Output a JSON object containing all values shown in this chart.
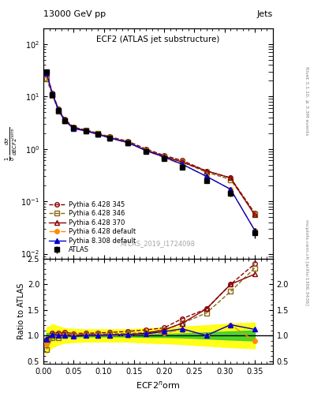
{
  "title_top": "13000 GeV pp",
  "title_right": "Jets",
  "plot_title": "ECF2 (ATLAS jet substructure)",
  "xlabel": "ECF2$^n$orm",
  "ylabel_main": "$\\frac{1}{\\sigma} \\frac{d\\sigma}{dECF2^norm}$",
  "ylabel_ratio": "Ratio to ATLAS",
  "watermark": "ATLAS_2019_I1724098",
  "right_label": "Rivet 3.1.10, ≥ 3.3M events",
  "arxiv_label": "mcplots.cern.ch [arXiv:1306.3436]",
  "x_atlas": [
    0.005,
    0.015,
    0.025,
    0.035,
    0.05,
    0.07,
    0.09,
    0.11,
    0.14,
    0.17,
    0.2,
    0.23,
    0.27,
    0.31,
    0.35
  ],
  "y_atlas": [
    30,
    11,
    5.5,
    3.5,
    2.5,
    2.2,
    1.9,
    1.6,
    1.3,
    0.9,
    0.65,
    0.45,
    0.25,
    0.14,
    0.025
  ],
  "y_atlas_err": [
    2,
    0.5,
    0.3,
    0.2,
    0.15,
    0.1,
    0.1,
    0.08,
    0.06,
    0.05,
    0.04,
    0.03,
    0.02,
    0.015,
    0.005
  ],
  "x_py345": [
    0.005,
    0.015,
    0.025,
    0.035,
    0.05,
    0.07,
    0.09,
    0.11,
    0.14,
    0.17,
    0.2,
    0.23,
    0.27,
    0.31,
    0.35
  ],
  "y_py345": [
    28,
    11.5,
    5.8,
    3.7,
    2.6,
    2.3,
    2.0,
    1.7,
    1.4,
    1.0,
    0.75,
    0.6,
    0.38,
    0.28,
    0.06
  ],
  "x_py346": [
    0.005,
    0.015,
    0.025,
    0.035,
    0.05,
    0.07,
    0.09,
    0.11,
    0.14,
    0.17,
    0.2,
    0.23,
    0.27,
    0.31,
    0.35
  ],
  "y_py346": [
    22,
    10.5,
    5.3,
    3.5,
    2.5,
    2.25,
    1.95,
    1.65,
    1.35,
    0.95,
    0.72,
    0.56,
    0.36,
    0.26,
    0.058
  ],
  "x_py370": [
    0.005,
    0.015,
    0.025,
    0.035,
    0.05,
    0.07,
    0.09,
    0.11,
    0.14,
    0.17,
    0.2,
    0.23,
    0.27,
    0.31,
    0.35
  ],
  "y_py370": [
    28,
    11.0,
    5.6,
    3.6,
    2.5,
    2.25,
    1.92,
    1.62,
    1.32,
    0.94,
    0.72,
    0.56,
    0.38,
    0.28,
    0.055
  ],
  "x_pydef": [
    0.005,
    0.015,
    0.025,
    0.035,
    0.05,
    0.07,
    0.09,
    0.11,
    0.14,
    0.17,
    0.2,
    0.23,
    0.27,
    0.31,
    0.35
  ],
  "y_pydef": [
    25,
    11.0,
    5.5,
    3.5,
    2.45,
    2.2,
    1.9,
    1.6,
    1.3,
    0.92,
    0.68,
    0.5,
    0.3,
    0.17,
    0.028
  ],
  "x_py8": [
    0.005,
    0.015,
    0.025,
    0.035,
    0.05,
    0.07,
    0.09,
    0.11,
    0.14,
    0.17,
    0.2,
    0.23,
    0.27,
    0.31,
    0.35
  ],
  "y_py8": [
    28,
    11.2,
    5.5,
    3.5,
    2.45,
    2.2,
    1.9,
    1.62,
    1.32,
    0.93,
    0.7,
    0.51,
    0.3,
    0.17,
    0.028
  ],
  "ratio_py345": [
    0.93,
    1.05,
    1.05,
    1.06,
    1.04,
    1.045,
    1.05,
    1.06,
    1.08,
    1.11,
    1.15,
    1.33,
    1.52,
    2.0,
    2.4
  ],
  "ratio_py346": [
    0.73,
    0.95,
    0.96,
    1.0,
    1.0,
    1.023,
    1.026,
    1.03,
    1.04,
    1.055,
    1.11,
    1.24,
    1.44,
    1.86,
    2.32
  ],
  "ratio_py370": [
    0.93,
    1.0,
    1.02,
    1.03,
    1.0,
    1.023,
    1.01,
    1.01,
    1.015,
    1.044,
    1.11,
    1.24,
    1.52,
    2.0,
    2.2
  ],
  "ratio_pydef": [
    0.83,
    1.0,
    1.0,
    1.0,
    0.98,
    1.0,
    1.0,
    1.0,
    1.0,
    1.022,
    1.046,
    1.11,
    1.0,
    1.21,
    0.89
  ],
  "ratio_py8": [
    0.93,
    1.02,
    1.0,
    1.0,
    0.98,
    1.0,
    1.0,
    1.01,
    1.015,
    1.033,
    1.077,
    1.13,
    1.0,
    1.21,
    1.12
  ],
  "green_band_lo": [
    0.85,
    0.95,
    0.97,
    0.98,
    0.98,
    0.98,
    0.98,
    0.98,
    0.98,
    0.97,
    0.97,
    0.96,
    0.94,
    0.92,
    0.9
  ],
  "green_band_hi": [
    1.05,
    1.05,
    1.03,
    1.02,
    1.02,
    1.02,
    1.02,
    1.02,
    1.02,
    1.03,
    1.03,
    1.04,
    1.06,
    1.08,
    1.1
  ],
  "yellow_band_lo": [
    0.65,
    0.78,
    0.82,
    0.86,
    0.87,
    0.88,
    0.88,
    0.88,
    0.88,
    0.86,
    0.85,
    0.83,
    0.8,
    0.77,
    0.75
  ],
  "yellow_band_hi": [
    1.15,
    1.22,
    1.18,
    1.14,
    1.13,
    1.12,
    1.12,
    1.12,
    1.12,
    1.14,
    1.15,
    1.17,
    1.2,
    1.23,
    1.25
  ],
  "color_py345": "#8B0000",
  "color_py346": "#8B6914",
  "color_py370": "#8B0000",
  "color_pydef": "#FF8C00",
  "color_py8": "#0000CD",
  "xlim": [
    0.0,
    0.38
  ],
  "ylim_main": [
    0.008,
    200
  ],
  "ylim_ratio": [
    0.45,
    2.5
  ]
}
